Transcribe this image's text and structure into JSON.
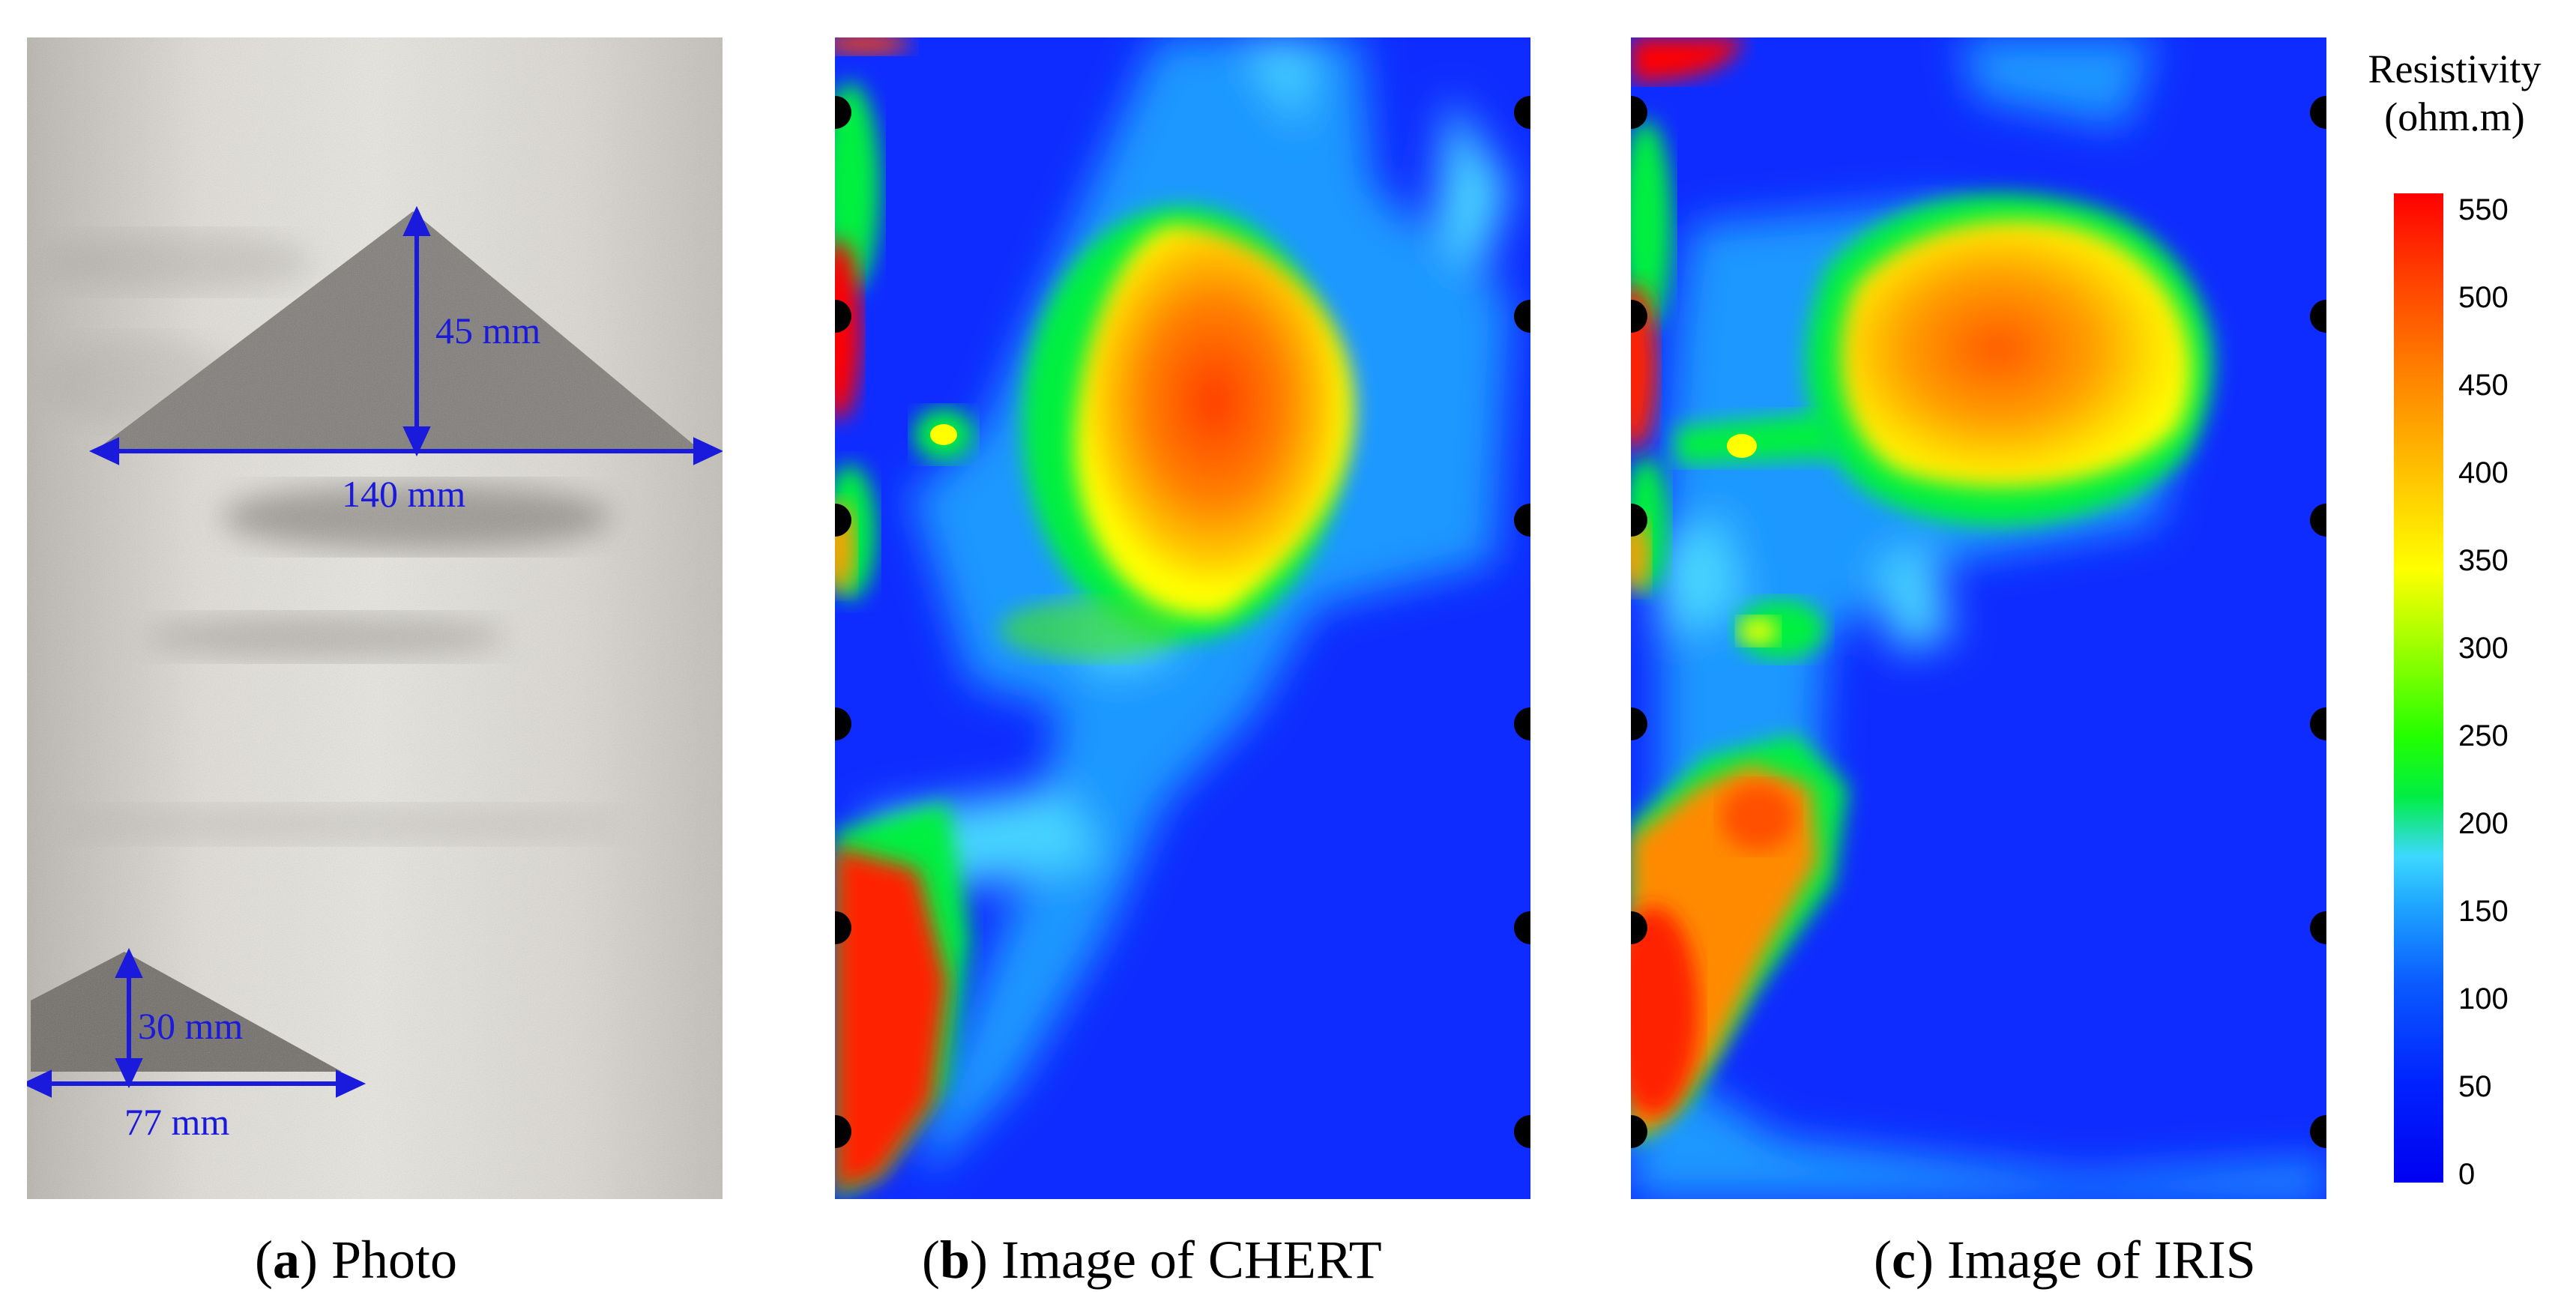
{
  "captions": {
    "a": {
      "letter": "a",
      "text": ") Photo"
    },
    "b": {
      "letter": "b",
      "text": ") Image of CHERT"
    },
    "c": {
      "letter": "c",
      "text": ") Image of IRIS"
    }
  },
  "photo": {
    "large_height": "45 mm",
    "large_width": "140 mm",
    "small_height": "30 mm",
    "small_width": "77 mm"
  },
  "colorbar": {
    "title_line1": "Resistivity",
    "title_line2": "(ohm.m)",
    "ticks": [
      "550",
      "500",
      "450",
      "400",
      "350",
      "300",
      "250",
      "200",
      "150",
      "100",
      "50",
      "0"
    ]
  }
}
